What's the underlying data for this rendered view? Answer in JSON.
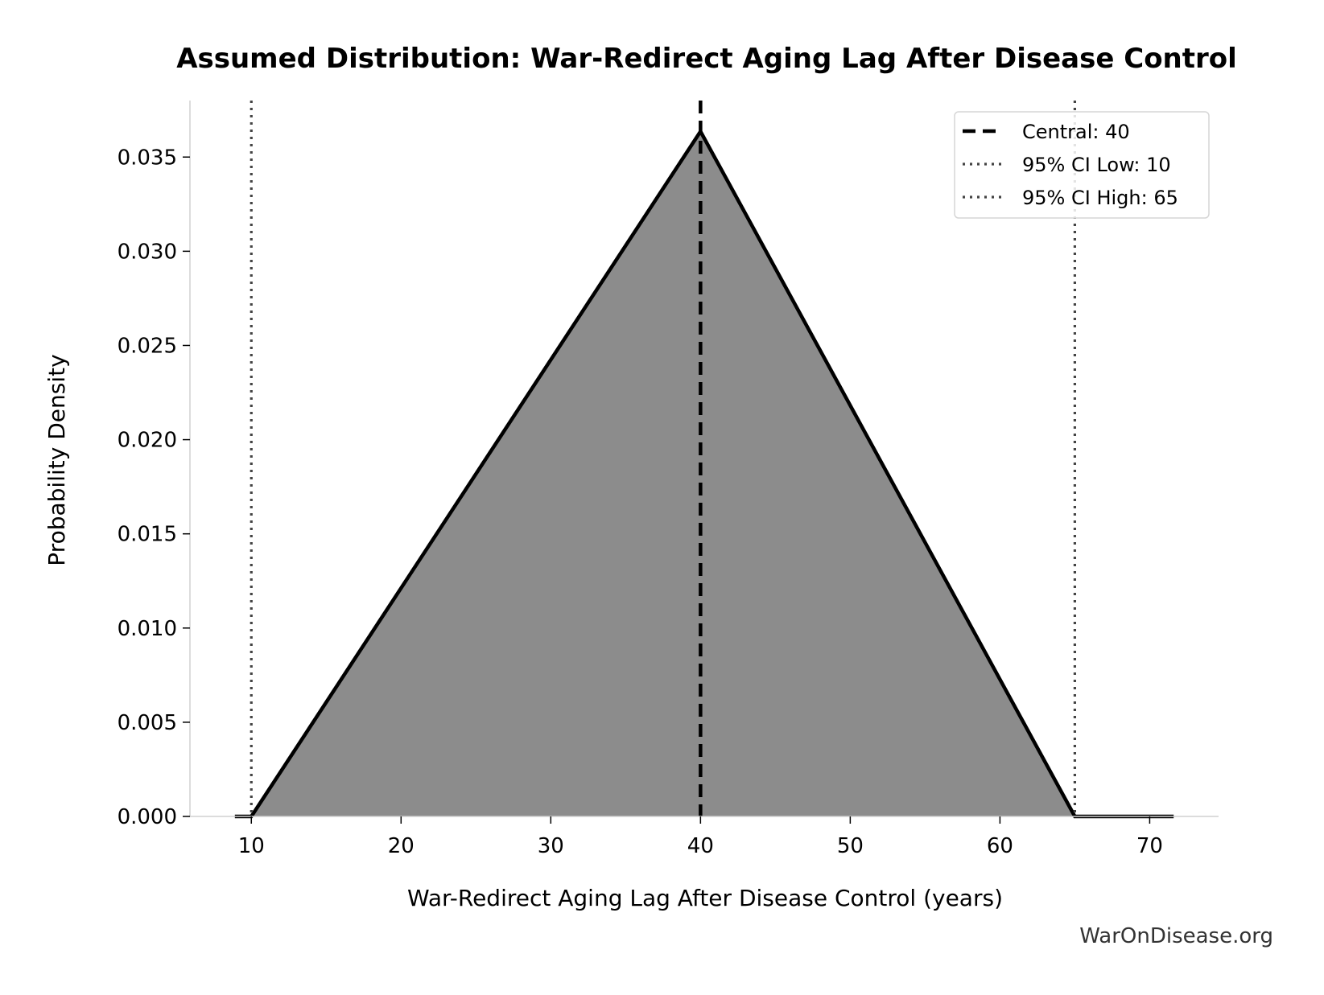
{
  "chart_data": {
    "type": "area",
    "title": "Assumed Distribution: War-Redirect Aging Lag After Disease Control",
    "xlabel": "War-Redirect Aging Lag After Disease Control (years)",
    "ylabel": "Probability Density",
    "xlim": [
      5.9,
      74.6
    ],
    "ylim": [
      0,
      0.038
    ],
    "xticks": [
      10,
      20,
      30,
      40,
      50,
      60,
      70
    ],
    "yticks": [
      0.0,
      0.005,
      0.01,
      0.015,
      0.02,
      0.025,
      0.03,
      0.035
    ],
    "ytick_labels": [
      "0.000",
      "0.005",
      "0.010",
      "0.015",
      "0.020",
      "0.025",
      "0.030",
      "0.035"
    ],
    "series": [
      {
        "name": "",
        "x": [
          8.9,
          10,
          40,
          65,
          71.6
        ],
        "y": [
          0,
          0,
          0.03636,
          0,
          0
        ],
        "fill": "#8c8c8c",
        "line": "#000000"
      }
    ],
    "vlines": [
      {
        "x": 40,
        "style": "dashed",
        "color": "#000000",
        "label": "Central: 40"
      },
      {
        "x": 10,
        "style": "dotted",
        "color": "#444444",
        "label": "95% CI Low: 10"
      },
      {
        "x": 65,
        "style": "dotted",
        "color": "#444444",
        "label": "95% CI High: 65"
      }
    ],
    "legend_position": "top-right",
    "grid": false
  },
  "watermark": "WarOnDisease.org"
}
